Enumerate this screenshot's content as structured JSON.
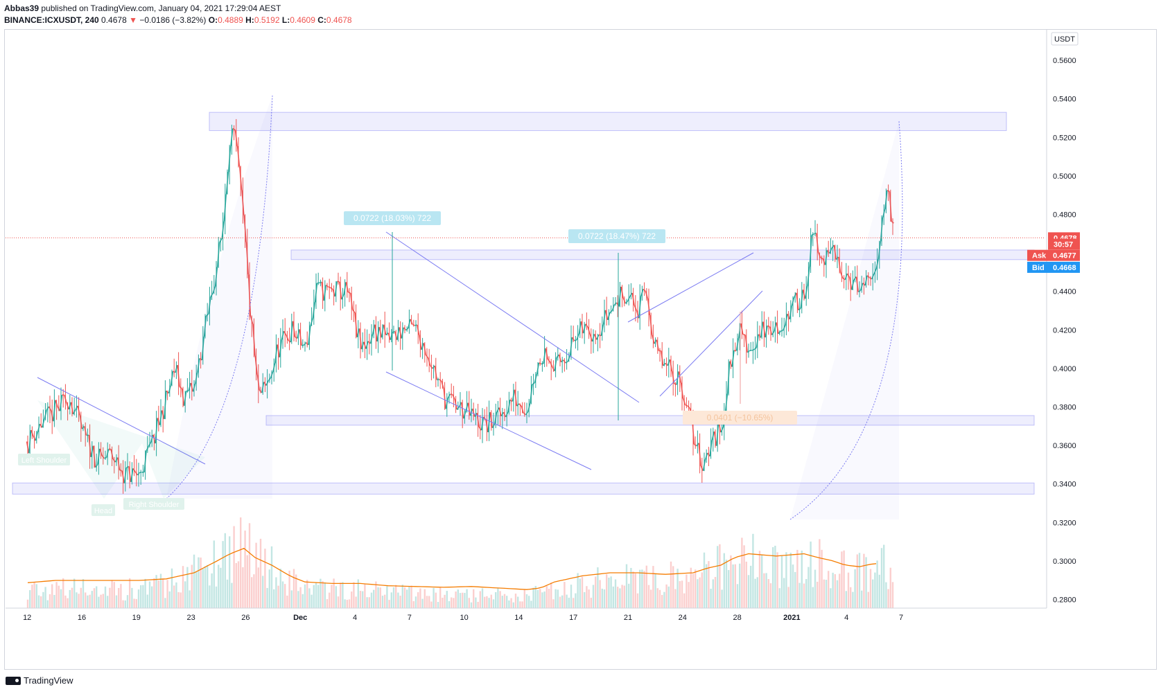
{
  "header": {
    "line1_author": "Abbas39",
    "line1_rest": " published on TradingView.com, January 04, 2021 17:29:04 AEST",
    "symbol": "BINANCE:ICXUSDT, 240",
    "last": "0.4678",
    "change_arrow": "▼",
    "change": "−0.0186 (−3.82%)",
    "o_label": "O:",
    "o": "0.4889",
    "h_label": "H:",
    "h": "0.5192",
    "l_label": "L:",
    "l": "0.4609",
    "c_label": "C:",
    "c": "0.4678"
  },
  "footer": {
    "brand": "TradingView",
    "logo_icon": "tradingview-logo-icon"
  },
  "chart_data": {
    "type": "candlestick",
    "currency_label": "USDT",
    "y_ticks": [
      "0.5600",
      "0.5400",
      "0.5200",
      "0.5000",
      "0.4800",
      "0.4600",
      "0.4400",
      "0.4200",
      "0.4000",
      "0.3800",
      "0.3600",
      "0.3400",
      "0.3200",
      "0.3000",
      "0.2800"
    ],
    "y_range": [
      0.2755,
      0.5755
    ],
    "x_ticks": [
      "12",
      "16",
      "19",
      "23",
      "26",
      "Dec",
      "4",
      "7",
      "10",
      "14",
      "17",
      "21",
      "24",
      "28",
      "2021",
      "4",
      "7"
    ],
    "x_tick_index": [
      0,
      2,
      4,
      6,
      8,
      10,
      12,
      14,
      16,
      18,
      20,
      22,
      24,
      26,
      28,
      30,
      32
    ],
    "price_labels": [
      {
        "text": "0.4678",
        "kind": "last",
        "color": "#ef5350"
      },
      {
        "text": "30:57",
        "kind": "timer",
        "color": "#ef5350"
      },
      {
        "text": "Ask",
        "value": "0.4677",
        "kind": "ask",
        "color": "#ef5350"
      },
      {
        "text": "Bid",
        "value": "0.4668",
        "kind": "bid",
        "color": "#2196f3"
      }
    ],
    "measure_labels": [
      "0.0722 (18.03%) 722",
      "0.0722 (18.47%) 722",
      "0.0401 (−10.65%)"
    ],
    "pattern_labels": [
      "Left Shoulder",
      "Head",
      "Right Shoulder"
    ],
    "colors": {
      "up": "#26a69a",
      "down": "#ef5350",
      "zone": "#5c5cf0",
      "ma": "#f57c00",
      "line": "#7b7bf2"
    },
    "price_path": [
      [
        0,
        0.362
      ],
      [
        0.5,
        0.372
      ],
      [
        1,
        0.378
      ],
      [
        1.5,
        0.385
      ],
      [
        2,
        0.365
      ],
      [
        2.5,
        0.352
      ],
      [
        3,
        0.355
      ],
      [
        3.5,
        0.345
      ],
      [
        4,
        0.345
      ],
      [
        4.5,
        0.362
      ],
      [
        5,
        0.385
      ],
      [
        5.3,
        0.4
      ],
      [
        5.6,
        0.385
      ],
      [
        6,
        0.39
      ],
      [
        6.5,
        0.43
      ],
      [
        7,
        0.47
      ],
      [
        7.3,
        0.525
      ],
      [
        7.5,
        0.515
      ],
      [
        7.8,
        0.47
      ],
      [
        8,
        0.43
      ],
      [
        8.3,
        0.385
      ],
      [
        8.6,
        0.39
      ],
      [
        9,
        0.41
      ],
      [
        9.5,
        0.42
      ],
      [
        10,
        0.41
      ],
      [
        10.4,
        0.44
      ],
      [
        10.8,
        0.44
      ],
      [
        11.5,
        0.44
      ],
      [
        12,
        0.41
      ],
      [
        12.5,
        0.42
      ],
      [
        13,
        0.415
      ],
      [
        13.5,
        0.42
      ],
      [
        14,
        0.42
      ],
      [
        14.5,
        0.405
      ],
      [
        15,
        0.385
      ],
      [
        15.5,
        0.38
      ],
      [
        16,
        0.375
      ],
      [
        16.5,
        0.37
      ],
      [
        17,
        0.375
      ],
      [
        17.5,
        0.385
      ],
      [
        18,
        0.38
      ],
      [
        18.3,
        0.4
      ],
      [
        18.7,
        0.41
      ],
      [
        19,
        0.4
      ],
      [
        19.5,
        0.41
      ],
      [
        20,
        0.42
      ],
      [
        20.5,
        0.42
      ],
      [
        21,
        0.43
      ],
      [
        21.5,
        0.44
      ],
      [
        22,
        0.43
      ],
      [
        22.3,
        0.44
      ],
      [
        22.6,
        0.41
      ],
      [
        23,
        0.4
      ],
      [
        23.5,
        0.395
      ],
      [
        24,
        0.365
      ],
      [
        24.3,
        0.35
      ],
      [
        24.6,
        0.36
      ],
      [
        25,
        0.37
      ],
      [
        25.3,
        0.4
      ],
      [
        25.6,
        0.42
      ],
      [
        26,
        0.41
      ],
      [
        26.5,
        0.42
      ],
      [
        27,
        0.42
      ],
      [
        27.5,
        0.43
      ],
      [
        28,
        0.44
      ],
      [
        28.3,
        0.47
      ],
      [
        28.6,
        0.455
      ],
      [
        29,
        0.46
      ],
      [
        29.5,
        0.45
      ],
      [
        30,
        0.44
      ],
      [
        30.5,
        0.445
      ],
      [
        30.8,
        0.48
      ],
      [
        31,
        0.49
      ],
      [
        31.2,
        0.475
      ]
    ],
    "volume_path": [
      [
        0,
        0.3
      ],
      [
        2,
        0.3
      ],
      [
        4,
        0.3
      ],
      [
        5,
        0.4
      ],
      [
        6,
        0.55
      ],
      [
        7,
        0.9
      ],
      [
        7.5,
        1.0
      ],
      [
        8,
        1.0
      ],
      [
        8.5,
        0.85
      ],
      [
        9,
        0.55
      ],
      [
        10,
        0.35
      ],
      [
        11,
        0.3
      ],
      [
        12,
        0.3
      ],
      [
        13,
        0.28
      ],
      [
        14,
        0.25
      ],
      [
        15,
        0.22
      ],
      [
        16,
        0.2
      ],
      [
        17,
        0.2
      ],
      [
        18,
        0.2
      ],
      [
        19,
        0.28
      ],
      [
        20,
        0.4
      ],
      [
        21,
        0.45
      ],
      [
        22,
        0.45
      ],
      [
        23,
        0.45
      ],
      [
        24,
        0.55
      ],
      [
        25,
        0.65
      ],
      [
        26,
        0.75
      ],
      [
        27,
        0.75
      ],
      [
        28,
        0.75
      ],
      [
        29,
        0.75
      ],
      [
        30,
        0.6
      ],
      [
        31,
        0.65
      ]
    ],
    "volume_ma": [
      [
        0,
        0.17
      ],
      [
        1,
        0.2
      ],
      [
        2,
        0.2
      ],
      [
        3,
        0.2
      ],
      [
        4,
        0.2
      ],
      [
        5,
        0.22
      ],
      [
        6,
        0.3
      ],
      [
        6.8,
        0.45
      ],
      [
        7.3,
        0.55
      ],
      [
        7.8,
        0.62
      ],
      [
        8.2,
        0.5
      ],
      [
        8.8,
        0.4
      ],
      [
        9.5,
        0.25
      ],
      [
        10,
        0.18
      ],
      [
        11,
        0.16
      ],
      [
        12,
        0.16
      ],
      [
        13,
        0.13
      ],
      [
        14,
        0.12
      ],
      [
        15,
        0.11
      ],
      [
        16,
        0.12
      ],
      [
        17,
        0.1
      ],
      [
        18,
        0.08
      ],
      [
        18.5,
        0.1
      ],
      [
        19,
        0.18
      ],
      [
        20,
        0.26
      ],
      [
        21,
        0.3
      ],
      [
        22,
        0.3
      ],
      [
        23,
        0.28
      ],
      [
        24,
        0.3
      ],
      [
        24.5,
        0.36
      ],
      [
        25,
        0.4
      ],
      [
        25.5,
        0.5
      ],
      [
        26,
        0.55
      ],
      [
        27,
        0.52
      ],
      [
        28,
        0.55
      ],
      [
        28.5,
        0.5
      ],
      [
        29,
        0.46
      ],
      [
        29.5,
        0.4
      ],
      [
        30,
        0.38
      ],
      [
        30.5,
        0.42
      ]
    ]
  }
}
